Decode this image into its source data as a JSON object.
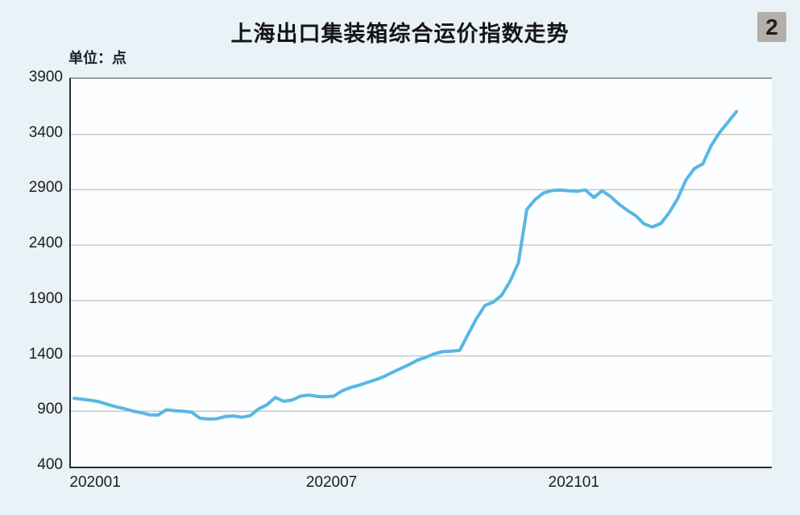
{
  "header": {
    "title": "上海出口集装箱综合运价指数走势",
    "page_badge": "2",
    "unit_label": "单位：点"
  },
  "colors": {
    "page_background": "#e9f2f7",
    "plot_background": "#fcfeff",
    "axis_border": "#2b2b2b",
    "plot_top_border": "#9b9b9b",
    "gridline": "#c9c9c9",
    "line": "#58b7e3",
    "badge_background": "#b3afa9",
    "text": "#1d1d1d"
  },
  "chart_data": {
    "type": "line",
    "title": "上海出口集装箱综合运价指数走势",
    "unit_label": "单位：点",
    "ylabel": "点",
    "ylim": [
      400,
      3900
    ],
    "y_ticks": [
      3900,
      3400,
      2900,
      2400,
      1900,
      1400,
      900,
      400
    ],
    "grid": true,
    "legend": "none",
    "x_axis": {
      "tick_labels": [
        "202001",
        "202007",
        "202101"
      ],
      "tick_positions_index": [
        2.7,
        30.9,
        59.8
      ]
    },
    "series": [
      {
        "name": "上海出口集装箱综合运价指数",
        "frequency": "weekly",
        "color": "#58b7e3",
        "values": [
          1017,
          1008,
          999,
          986,
          962,
          941,
          923,
          902,
          887,
          868,
          866,
          914,
          905,
          900,
          892,
          837,
          830,
          832,
          852,
          858,
          846,
          860,
          921,
          958,
          1024,
          990,
          1001,
          1037,
          1046,
          1034,
          1030,
          1037,
          1086,
          1115,
          1136,
          1161,
          1185,
          1215,
          1252,
          1288,
          1323,
          1363,
          1388,
          1420,
          1439,
          1442,
          1449,
          1595,
          1737,
          1854,
          1886,
          1948,
          2073,
          2242,
          2722,
          2812,
          2871,
          2893,
          2897,
          2890,
          2886,
          2898,
          2830,
          2891,
          2838,
          2770,
          2714,
          2665,
          2592,
          2564,
          2597,
          2695,
          2820,
          2990,
          3092,
          3134,
          3299,
          3417,
          3509,
          3605
        ]
      }
    ]
  }
}
